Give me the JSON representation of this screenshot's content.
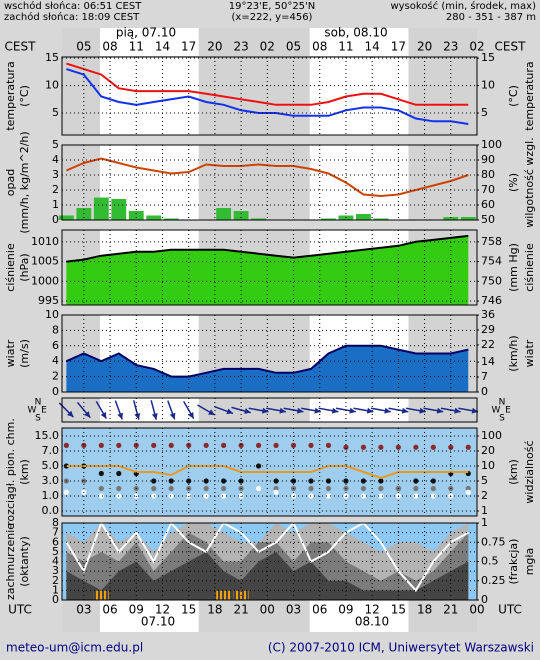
{
  "header": {
    "left": [
      "wschód słońca: 06:51 CEST",
      "zachód słońca: 18:09 CEST"
    ],
    "center": [
      "19°23'E, 50°25'N",
      "(x=222, y=456)"
    ],
    "right": [
      "wysokość (min, środek, max)",
      "280 - 351 - 387 m"
    ]
  },
  "footer": {
    "left": "meteo-um@icm.edu.pl",
    "right": "(C) 2007-2010 ICM, Uniwersytet Warszawski"
  },
  "timeline": {
    "xlim": [
      2.5,
      50
    ],
    "x": [
      3,
      5,
      7,
      9,
      11,
      13,
      15,
      17,
      19,
      21,
      23,
      25,
      27,
      29,
      31,
      33,
      35,
      37,
      39,
      41,
      43,
      45,
      47,
      49
    ],
    "night": [
      [
        2.5,
        6.85
      ],
      [
        18.15,
        30.85
      ],
      [
        42.15,
        50
      ]
    ],
    "night_color": "#d3d3d3",
    "top": {
      "zone": "CEST",
      "dates": [
        "pią, 07.10",
        "sob, 08.10"
      ],
      "ticks": [
        {
          "value": 5,
          "label": "05"
        },
        {
          "value": 8,
          "label": "08"
        },
        11,
        14,
        17,
        20,
        23,
        {
          "value": 26,
          "label": "02"
        },
        {
          "value": 29,
          "label": "05"
        },
        {
          "value": 32,
          "label": "08"
        },
        {
          "value": 35,
          "label": "11"
        },
        {
          "value": 38,
          "label": "14"
        },
        {
          "value": 41,
          "label": "17"
        },
        {
          "value": 44,
          "label": "20"
        },
        {
          "value": 47,
          "label": "23"
        },
        {
          "value": 50,
          "label": "02"
        }
      ]
    },
    "bottom": {
      "zone": "UTC",
      "dates": [
        "07.10",
        "08.10"
      ],
      "ticks": [
        {
          "value": 5,
          "label": "03"
        },
        {
          "value": 8,
          "label": "06"
        },
        {
          "value": 11,
          "label": "09"
        },
        {
          "value": 14,
          "label": "12"
        },
        {
          "value": 17,
          "label": "15"
        },
        {
          "value": 20,
          "label": "18"
        },
        {
          "value": 23,
          "label": "21"
        },
        {
          "value": 26,
          "label": "00"
        },
        {
          "value": 29,
          "label": "03"
        },
        {
          "value": 32,
          "label": "06"
        },
        {
          "value": 35,
          "label": "09"
        },
        {
          "value": 38,
          "label": "12"
        },
        {
          "value": 41,
          "label": "15"
        },
        {
          "value": 44,
          "label": "18"
        },
        {
          "value": 47,
          "label": "21"
        },
        {
          "value": 50,
          "label": "00"
        }
      ]
    }
  },
  "chart_data": [
    {
      "type": "line",
      "background": "#ffffff",
      "night": true,
      "ylabel": [
        "temperatura",
        "(°C)"
      ],
      "y2label": [
        "temperatura",
        "(°C)"
      ],
      "ylim": [
        1,
        15.2
      ],
      "yticks": [
        15,
        10,
        5
      ],
      "y2lim": [
        1,
        15.2
      ],
      "y2ticks": [
        15,
        10,
        5
      ],
      "series": [
        {
          "color": "#ee1111",
          "values": [
            14,
            13,
            12,
            9.5,
            9,
            9,
            9,
            9,
            8.5,
            8,
            7.5,
            7,
            6.5,
            6.5,
            6.5,
            7,
            8,
            8.5,
            8.5,
            7.5,
            6.5,
            6.5,
            6.5,
            6.5
          ]
        },
        {
          "color": "#1133ee",
          "values": [
            13,
            12,
            8,
            7,
            6.5,
            7,
            7.5,
            8,
            7,
            6.5,
            5.5,
            5,
            5,
            4.5,
            4.5,
            4.5,
            5.5,
            6,
            6,
            5.5,
            4,
            3.5,
            3.5,
            3
          ]
        }
      ]
    },
    {
      "type": "bar",
      "background": "#ffffff",
      "night": true,
      "ylabel": [
        "opad",
        "(mm/h, kg/m^2/h)"
      ],
      "y2label": [
        "wilgotność wzgl.",
        "(%)"
      ],
      "ylim": [
        0,
        5
      ],
      "yticks": [
        5,
        4,
        3,
        2,
        1,
        0
      ],
      "y2lim": [
        50,
        100
      ],
      "y2ticks": [
        100,
        90,
        80,
        70,
        60,
        50
      ],
      "series": [
        {
          "color": "#33bb33",
          "values": [
            0.3,
            0.8,
            1.5,
            1.4,
            0.6,
            0.3,
            0.1,
            0,
            0,
            0.8,
            0.6,
            0.1,
            0,
            0,
            0,
            0.1,
            0.3,
            0.4,
            0.1,
            0,
            0,
            0,
            0.2,
            0.2
          ]
        },
        {
          "type": "line",
          "axis": "y2",
          "color": "#cc4400",
          "values": [
            83,
            88,
            91,
            88,
            85,
            83,
            81,
            82,
            87,
            86,
            86,
            87,
            86,
            86,
            84,
            81,
            75,
            67,
            66,
            67,
            70,
            73,
            76,
            80
          ]
        }
      ]
    },
    {
      "type": "area",
      "background": "#ffffff",
      "night": true,
      "ylabel": [
        "ciśnienie",
        "(hPa)"
      ],
      "y2label": [
        "ciśnienie",
        "(mm Hg)"
      ],
      "ylim": [
        994,
        1013
      ],
      "yticks": [
        1010,
        1005,
        1000,
        995
      ],
      "y2lim": [
        745.2,
        760.4
      ],
      "y2ticks": [
        758,
        754,
        750,
        746
      ],
      "series": [
        {
          "color": "#33cc11",
          "stroke": "#000000",
          "values": [
            1005,
            1005.5,
            1006.5,
            1007,
            1007.5,
            1007.5,
            1008,
            1008,
            1008,
            1008,
            1007.5,
            1007,
            1006.5,
            1006,
            1006.5,
            1007,
            1007.5,
            1008,
            1008.5,
            1009,
            1010,
            1010.5,
            1011,
            1011.5
          ]
        }
      ]
    },
    {
      "type": "area",
      "background": "#ffffff",
      "night": true,
      "ylabel": [
        "wiatr",
        "(m/s)"
      ],
      "y2label": [
        "wiatr",
        "(km/h)"
      ],
      "ylim": [
        0,
        10
      ],
      "yticks": [
        10,
        8,
        6,
        4,
        2,
        0
      ],
      "y2lim": [
        0,
        36
      ],
      "y2ticks": [
        36,
        29,
        22,
        14,
        7,
        0
      ],
      "series": [
        {
          "color": "#1a6fc4",
          "stroke": "#000066",
          "values": [
            4,
            5,
            4,
            5,
            3.5,
            3,
            2,
            2,
            2.5,
            3,
            3,
            3,
            2.5,
            2.5,
            3,
            5,
            6,
            6,
            6,
            5.5,
            5,
            5,
            5,
            5.5
          ]
        }
      ]
    },
    {
      "type": "quiver",
      "background": "#ffffff",
      "night": true,
      "compass": [
        "N",
        "S",
        "W",
        "E"
      ],
      "series": [
        {
          "color": "#1a2a8c",
          "values": [
            315,
            320,
            330,
            340,
            345,
            345,
            340,
            330,
            300,
            290,
            285,
            280,
            280,
            280,
            280,
            280,
            280,
            280,
            280,
            280,
            280,
            280,
            280,
            280
          ]
        }
      ]
    },
    {
      "type": "dots",
      "background": "#9fcdee",
      "night": false,
      "yscale": "piecewise",
      "ylabel": [
        "rozciągł. pion. chm.",
        "(km)"
      ],
      "y2label": [
        "widzialność",
        "(km)"
      ],
      "yticks": [
        {
          "value": 15,
          "label": "15.0"
        },
        {
          "value": 7,
          "label": "7.0"
        },
        {
          "value": 5,
          "label": "5.0"
        },
        {
          "value": 3,
          "label": "3.0"
        },
        {
          "value": 1,
          "label": "1.0"
        },
        {
          "value": 0,
          "label": "0.0"
        }
      ],
      "y2ticks": [
        100,
        20,
        10,
        5,
        2,
        1
      ],
      "series": [
        {
          "color": "#8b2a2a",
          "values": [
            10,
            10,
            10,
            10,
            10,
            10,
            10,
            10,
            10,
            10,
            10,
            10,
            10,
            10,
            10,
            10,
            9,
            9,
            9,
            9,
            9,
            9,
            9,
            9
          ]
        },
        {
          "color": "#111111",
          "values": [
            5,
            5,
            4,
            4,
            4,
            3,
            3,
            3,
            3,
            3,
            3,
            5,
            3,
            3,
            3,
            3,
            3,
            3,
            3,
            2,
            3,
            3,
            4,
            4
          ]
        },
        {
          "color": "#777777",
          "values": [
            3,
            3,
            2,
            2,
            2,
            2,
            2,
            2,
            2,
            2,
            2,
            2,
            2,
            2,
            2,
            2,
            2,
            2,
            2,
            2,
            2,
            2,
            2,
            2
          ]
        },
        {
          "color": "#ffffff",
          "values": [
            1.5,
            1.5,
            1,
            1,
            1,
            1,
            1,
            1,
            1,
            1,
            1,
            2,
            1.5,
            1,
            1,
            1,
            1,
            1,
            1,
            1,
            1,
            1,
            1,
            1.5
          ]
        },
        {
          "type": "line",
          "axis": "y2",
          "color": "#e89a20",
          "values": [
            10,
            10,
            10,
            10,
            8,
            8,
            7,
            10,
            10,
            10,
            8,
            8,
            8,
            8,
            8,
            10,
            10,
            8,
            6,
            8,
            8,
            8,
            8,
            8
          ]
        }
      ]
    },
    {
      "type": "area",
      "background": "#8ec9f4",
      "night": false,
      "ylabel": [
        "zachmurzenie",
        "(oktanty)"
      ],
      "y2label": [
        "mgła",
        "(frakcja)"
      ],
      "ylim": [
        0,
        8
      ],
      "yticks": [
        8,
        7,
        6,
        5,
        4,
        3,
        2,
        1,
        0
      ],
      "y2lim": [
        0,
        1
      ],
      "y2ticks": [
        1,
        0.75,
        0.5,
        0.25,
        0
      ],
      "series": [
        {
          "color": "#b4b4b4",
          "values": [
            7,
            6,
            8,
            6,
            7,
            5,
            7,
            8,
            8,
            7,
            6,
            6,
            8,
            7,
            8,
            8,
            7,
            6,
            5,
            6,
            6,
            5,
            7,
            8
          ]
        },
        {
          "color": "#7c7c7c",
          "values": [
            5,
            4,
            5,
            4,
            6,
            3,
            5,
            7,
            6,
            4,
            4,
            6,
            6,
            4,
            6,
            6,
            4,
            3,
            2,
            3,
            2,
            3,
            5,
            7
          ]
        },
        {
          "color": "#454545",
          "values": [
            3,
            2,
            1,
            3,
            4,
            2,
            3,
            4,
            5,
            3,
            2,
            4,
            5,
            3,
            4,
            2,
            2,
            1,
            1,
            1,
            1,
            2,
            3,
            4
          ]
        },
        {
          "type": "line",
          "color": "#ffffff",
          "values": [
            6,
            3,
            8,
            5,
            7,
            4,
            8,
            6,
            5,
            8,
            7,
            5,
            6,
            8,
            4,
            5,
            7,
            8,
            6,
            3,
            1,
            4,
            6,
            7
          ]
        },
        {
          "type": "bar",
          "axis": "y2",
          "color": "#f0a000",
          "striped": true,
          "values": [
            0,
            0,
            0.12,
            0,
            0,
            0,
            0,
            0,
            0,
            0.12,
            0.12,
            0,
            0,
            0,
            0,
            0,
            0,
            0,
            0,
            0,
            0,
            0,
            0,
            0
          ]
        }
      ]
    }
  ]
}
